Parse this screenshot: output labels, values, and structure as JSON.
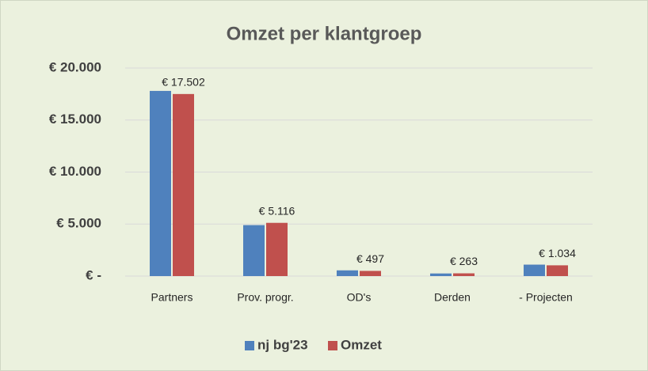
{
  "chart_data": {
    "type": "bar",
    "title": "Omzet per klantgroep",
    "categories": [
      "Partners",
      "Prov. progr.",
      "OD's",
      "Derden",
      "- Projecten"
    ],
    "series": [
      {
        "name": "nj bg'23",
        "color": "#4f81bd",
        "values": [
          17800,
          4900,
          550,
          250,
          1100
        ]
      },
      {
        "name": "Omzet",
        "color": "#c0504d",
        "values": [
          17502,
          5116,
          497,
          263,
          1034
        ],
        "value_labels": [
          "€ 17.502",
          "€ 5.116",
          "€ 497",
          "€ 263",
          "€ 1.034"
        ]
      }
    ],
    "ylim": [
      0,
      20000
    ],
    "yticks": [
      {
        "value": 0,
        "label": "€ -"
      },
      {
        "value": 5000,
        "label": "€ 5.000"
      },
      {
        "value": 10000,
        "label": "€ 10.000"
      },
      {
        "value": 15000,
        "label": "€ 15.000"
      },
      {
        "value": 20000,
        "label": "€ 20.000"
      }
    ],
    "grid": true,
    "legend": "bottom"
  }
}
